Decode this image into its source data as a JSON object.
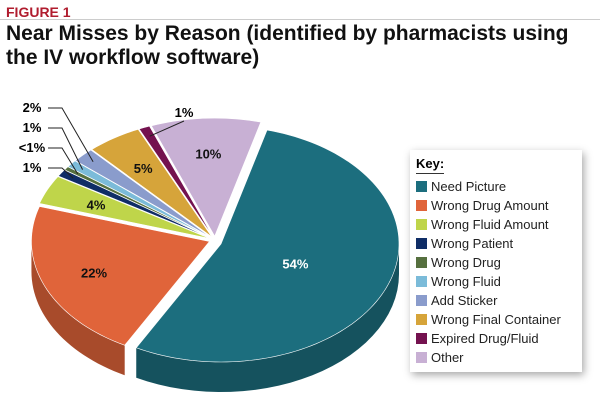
{
  "figure_label": "FIGURE 1",
  "chart_data": {
    "type": "pie",
    "title": "Near Misses by Reason (identified by pharmacists using the IV workflow software)",
    "legend_title": "Key:",
    "legend_placement": "right",
    "three_d": true,
    "slices": [
      {
        "name": "Need Picture",
        "value": 54,
        "label": "54%",
        "color": "#1c6e7e"
      },
      {
        "name": "Wrong Drug Amount",
        "value": 22,
        "label": "22%",
        "color": "#e0643a"
      },
      {
        "name": "Wrong Fluid Amount",
        "value": 4,
        "label": "4%",
        "color": "#bfd54a"
      },
      {
        "name": "Wrong Patient",
        "value": 1,
        "label": "1%",
        "color": "#0f2d66"
      },
      {
        "name": "Wrong Drug",
        "value": 0.5,
        "label": "<1%",
        "color": "#56703f"
      },
      {
        "name": "Wrong Fluid",
        "value": 1,
        "label": "1%",
        "color": "#7bbbd9"
      },
      {
        "name": "Add Sticker",
        "value": 2,
        "label": "2%",
        "color": "#8a9ccc"
      },
      {
        "name": "Wrong Final Container",
        "value": 5,
        "label": "5%",
        "color": "#d6a43a"
      },
      {
        "name": "Expired Drug/Fluid",
        "value": 1,
        "label": "1%",
        "color": "#74124f"
      },
      {
        "name": "Other",
        "value": 10,
        "label": "10%",
        "color": "#c8b0d4"
      }
    ]
  }
}
